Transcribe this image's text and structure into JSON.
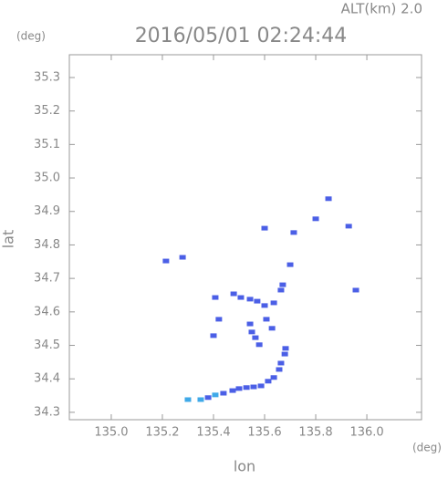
{
  "chart_data": {
    "type": "scatter",
    "title": "2016/05/01 02:24:44",
    "subtitle": "ALT(km) 2.0",
    "y_unit": "(deg)",
    "x_unit": "(deg)",
    "x_label": "lon",
    "y_label": "lat",
    "xlim": [
      134.836,
      136.214
    ],
    "ylim": [
      34.278,
      35.368
    ],
    "xticks": [
      {
        "value": 135,
        "label": "135.0"
      },
      135.2,
      135.4,
      135.6,
      135.8,
      {
        "value": 136,
        "label": "136.0"
      }
    ],
    "yticks": [
      34.3,
      34.4,
      34.5,
      34.6,
      34.7,
      34.8,
      34.9,
      {
        "value": 35,
        "label": "35.0"
      },
      35.1,
      35.2,
      35.3
    ],
    "series": [
      {
        "color": "#4b5fe6",
        "x": [
          135.379,
          135.439,
          135.475,
          135.5,
          135.529,
          135.557,
          135.586,
          135.614,
          135.636,
          135.657,
          135.664,
          135.679,
          135.682,
          135.214,
          135.279,
          135.407,
          135.479,
          135.507,
          135.543,
          135.571,
          135.6,
          135.636,
          135.664,
          135.671,
          135.543,
          135.55,
          135.564,
          135.579,
          135.607,
          135.629,
          135.421,
          135.4,
          135.6,
          135.714,
          135.7,
          135.8,
          135.85,
          135.929,
          135.957
        ],
        "y": [
          34.344,
          34.357,
          34.365,
          34.371,
          34.374,
          34.376,
          34.379,
          34.393,
          34.404,
          34.428,
          34.447,
          34.474,
          34.491,
          34.752,
          34.763,
          34.643,
          34.654,
          34.643,
          34.638,
          34.632,
          34.619,
          34.627,
          34.665,
          34.681,
          34.564,
          34.54,
          34.523,
          34.502,
          34.578,
          34.551,
          34.578,
          34.529,
          34.85,
          34.837,
          34.741,
          34.878,
          34.938,
          34.856,
          34.665
        ]
      },
      {
        "color": "#3fa9e8",
        "x": [
          135.3,
          135.35,
          135.407
        ],
        "y": [
          34.338,
          34.338,
          34.352
        ]
      }
    ]
  }
}
